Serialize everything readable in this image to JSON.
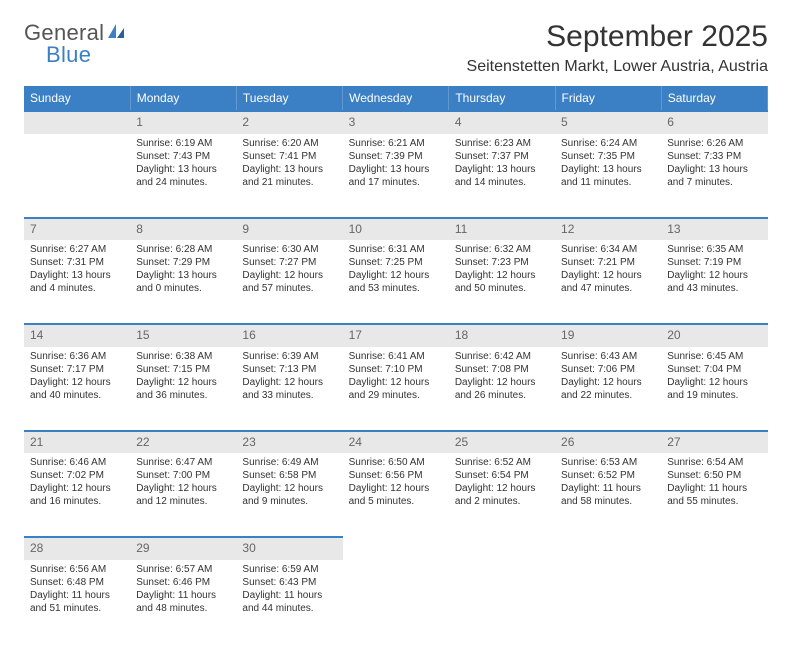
{
  "logo": {
    "line1": "General",
    "line2": "Blue"
  },
  "title": "September 2025",
  "location": "Seitenstetten Markt, Lower Austria, Austria",
  "weekday_header_bg": "#3b7fc4",
  "daynum_bg": "#e8e8e8",
  "weekdays": [
    "Sunday",
    "Monday",
    "Tuesday",
    "Wednesday",
    "Thursday",
    "Friday",
    "Saturday"
  ],
  "days": [
    {
      "n": "",
      "sunrise": "",
      "sunset": "",
      "daylight": ""
    },
    {
      "n": "1",
      "sunrise": "Sunrise: 6:19 AM",
      "sunset": "Sunset: 7:43 PM",
      "daylight": "Daylight: 13 hours and 24 minutes."
    },
    {
      "n": "2",
      "sunrise": "Sunrise: 6:20 AM",
      "sunset": "Sunset: 7:41 PM",
      "daylight": "Daylight: 13 hours and 21 minutes."
    },
    {
      "n": "3",
      "sunrise": "Sunrise: 6:21 AM",
      "sunset": "Sunset: 7:39 PM",
      "daylight": "Daylight: 13 hours and 17 minutes."
    },
    {
      "n": "4",
      "sunrise": "Sunrise: 6:23 AM",
      "sunset": "Sunset: 7:37 PM",
      "daylight": "Daylight: 13 hours and 14 minutes."
    },
    {
      "n": "5",
      "sunrise": "Sunrise: 6:24 AM",
      "sunset": "Sunset: 7:35 PM",
      "daylight": "Daylight: 13 hours and 11 minutes."
    },
    {
      "n": "6",
      "sunrise": "Sunrise: 6:26 AM",
      "sunset": "Sunset: 7:33 PM",
      "daylight": "Daylight: 13 hours and 7 minutes."
    },
    {
      "n": "7",
      "sunrise": "Sunrise: 6:27 AM",
      "sunset": "Sunset: 7:31 PM",
      "daylight": "Daylight: 13 hours and 4 minutes."
    },
    {
      "n": "8",
      "sunrise": "Sunrise: 6:28 AM",
      "sunset": "Sunset: 7:29 PM",
      "daylight": "Daylight: 13 hours and 0 minutes."
    },
    {
      "n": "9",
      "sunrise": "Sunrise: 6:30 AM",
      "sunset": "Sunset: 7:27 PM",
      "daylight": "Daylight: 12 hours and 57 minutes."
    },
    {
      "n": "10",
      "sunrise": "Sunrise: 6:31 AM",
      "sunset": "Sunset: 7:25 PM",
      "daylight": "Daylight: 12 hours and 53 minutes."
    },
    {
      "n": "11",
      "sunrise": "Sunrise: 6:32 AM",
      "sunset": "Sunset: 7:23 PM",
      "daylight": "Daylight: 12 hours and 50 minutes."
    },
    {
      "n": "12",
      "sunrise": "Sunrise: 6:34 AM",
      "sunset": "Sunset: 7:21 PM",
      "daylight": "Daylight: 12 hours and 47 minutes."
    },
    {
      "n": "13",
      "sunrise": "Sunrise: 6:35 AM",
      "sunset": "Sunset: 7:19 PM",
      "daylight": "Daylight: 12 hours and 43 minutes."
    },
    {
      "n": "14",
      "sunrise": "Sunrise: 6:36 AM",
      "sunset": "Sunset: 7:17 PM",
      "daylight": "Daylight: 12 hours and 40 minutes."
    },
    {
      "n": "15",
      "sunrise": "Sunrise: 6:38 AM",
      "sunset": "Sunset: 7:15 PM",
      "daylight": "Daylight: 12 hours and 36 minutes."
    },
    {
      "n": "16",
      "sunrise": "Sunrise: 6:39 AM",
      "sunset": "Sunset: 7:13 PM",
      "daylight": "Daylight: 12 hours and 33 minutes."
    },
    {
      "n": "17",
      "sunrise": "Sunrise: 6:41 AM",
      "sunset": "Sunset: 7:10 PM",
      "daylight": "Daylight: 12 hours and 29 minutes."
    },
    {
      "n": "18",
      "sunrise": "Sunrise: 6:42 AM",
      "sunset": "Sunset: 7:08 PM",
      "daylight": "Daylight: 12 hours and 26 minutes."
    },
    {
      "n": "19",
      "sunrise": "Sunrise: 6:43 AM",
      "sunset": "Sunset: 7:06 PM",
      "daylight": "Daylight: 12 hours and 22 minutes."
    },
    {
      "n": "20",
      "sunrise": "Sunrise: 6:45 AM",
      "sunset": "Sunset: 7:04 PM",
      "daylight": "Daylight: 12 hours and 19 minutes."
    },
    {
      "n": "21",
      "sunrise": "Sunrise: 6:46 AM",
      "sunset": "Sunset: 7:02 PM",
      "daylight": "Daylight: 12 hours and 16 minutes."
    },
    {
      "n": "22",
      "sunrise": "Sunrise: 6:47 AM",
      "sunset": "Sunset: 7:00 PM",
      "daylight": "Daylight: 12 hours and 12 minutes."
    },
    {
      "n": "23",
      "sunrise": "Sunrise: 6:49 AM",
      "sunset": "Sunset: 6:58 PM",
      "daylight": "Daylight: 12 hours and 9 minutes."
    },
    {
      "n": "24",
      "sunrise": "Sunrise: 6:50 AM",
      "sunset": "Sunset: 6:56 PM",
      "daylight": "Daylight: 12 hours and 5 minutes."
    },
    {
      "n": "25",
      "sunrise": "Sunrise: 6:52 AM",
      "sunset": "Sunset: 6:54 PM",
      "daylight": "Daylight: 12 hours and 2 minutes."
    },
    {
      "n": "26",
      "sunrise": "Sunrise: 6:53 AM",
      "sunset": "Sunset: 6:52 PM",
      "daylight": "Daylight: 11 hours and 58 minutes."
    },
    {
      "n": "27",
      "sunrise": "Sunrise: 6:54 AM",
      "sunset": "Sunset: 6:50 PM",
      "daylight": "Daylight: 11 hours and 55 minutes."
    },
    {
      "n": "28",
      "sunrise": "Sunrise: 6:56 AM",
      "sunset": "Sunset: 6:48 PM",
      "daylight": "Daylight: 11 hours and 51 minutes."
    },
    {
      "n": "29",
      "sunrise": "Sunrise: 6:57 AM",
      "sunset": "Sunset: 6:46 PM",
      "daylight": "Daylight: 11 hours and 48 minutes."
    },
    {
      "n": "30",
      "sunrise": "Sunrise: 6:59 AM",
      "sunset": "Sunset: 6:43 PM",
      "daylight": "Daylight: 11 hours and 44 minutes."
    },
    {
      "n": "",
      "sunrise": "",
      "sunset": "",
      "daylight": ""
    },
    {
      "n": "",
      "sunrise": "",
      "sunset": "",
      "daylight": ""
    },
    {
      "n": "",
      "sunrise": "",
      "sunset": "",
      "daylight": ""
    },
    {
      "n": "",
      "sunrise": "",
      "sunset": "",
      "daylight": ""
    }
  ]
}
